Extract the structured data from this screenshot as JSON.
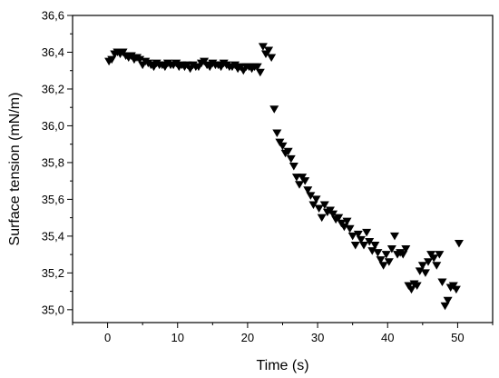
{
  "chart_data": {
    "type": "scatter",
    "title": "",
    "xlabel": "Time (s)",
    "ylabel": "Surface tension (mN/m)",
    "xlim": [
      -5,
      55
    ],
    "ylim": [
      34.93,
      36.6
    ],
    "xticks": [
      0,
      10,
      20,
      30,
      40,
      50
    ],
    "xtick_labels": [
      "0",
      "10",
      "20",
      "30",
      "40",
      "50"
    ],
    "yticks": [
      35.0,
      35.2,
      35.4,
      35.6,
      35.8,
      36.0,
      36.2,
      36.4,
      36.6
    ],
    "ytick_labels": [
      "35,0",
      "35,2",
      "35,4",
      "35,6",
      "35,8",
      "36,0",
      "36,2",
      "36,4",
      "36,6"
    ],
    "grid": false,
    "marker": "down-triangle",
    "marker_color": "#000000",
    "points": [
      [
        0.2,
        36.35
      ],
      [
        0.6,
        36.36
      ],
      [
        1.0,
        36.39
      ],
      [
        1.4,
        36.4
      ],
      [
        1.8,
        36.39
      ],
      [
        2.2,
        36.4
      ],
      [
        2.6,
        36.38
      ],
      [
        3.0,
        36.37
      ],
      [
        3.4,
        36.38
      ],
      [
        3.8,
        36.36
      ],
      [
        4.2,
        36.37
      ],
      [
        4.6,
        36.36
      ],
      [
        5.0,
        36.33
      ],
      [
        5.4,
        36.35
      ],
      [
        5.8,
        36.34
      ],
      [
        6.2,
        36.33
      ],
      [
        6.6,
        36.32
      ],
      [
        7.0,
        36.34
      ],
      [
        7.4,
        36.33
      ],
      [
        7.8,
        36.33
      ],
      [
        8.2,
        36.32
      ],
      [
        8.6,
        36.34
      ],
      [
        9.0,
        36.33
      ],
      [
        9.4,
        36.33
      ],
      [
        9.8,
        36.34
      ],
      [
        10.2,
        36.32
      ],
      [
        10.6,
        36.33
      ],
      [
        11.0,
        36.32
      ],
      [
        11.4,
        36.33
      ],
      [
        11.8,
        36.31
      ],
      [
        12.2,
        36.33
      ],
      [
        12.6,
        36.32
      ],
      [
        13.0,
        36.32
      ],
      [
        13.4,
        36.34
      ],
      [
        13.8,
        36.35
      ],
      [
        14.2,
        36.33
      ],
      [
        14.6,
        36.32
      ],
      [
        15.0,
        36.34
      ],
      [
        15.4,
        36.33
      ],
      [
        15.8,
        36.33
      ],
      [
        16.2,
        36.32
      ],
      [
        16.6,
        36.34
      ],
      [
        17.0,
        36.33
      ],
      [
        17.4,
        36.32
      ],
      [
        17.8,
        36.32
      ],
      [
        18.2,
        36.33
      ],
      [
        18.6,
        36.31
      ],
      [
        19.0,
        36.32
      ],
      [
        19.4,
        36.3
      ],
      [
        19.8,
        36.32
      ],
      [
        20.2,
        36.32
      ],
      [
        20.6,
        36.31
      ],
      [
        21.0,
        36.32
      ],
      [
        21.4,
        36.32
      ],
      [
        21.8,
        36.29
      ],
      [
        22.2,
        36.43
      ],
      [
        22.6,
        36.39
      ],
      [
        23.0,
        36.41
      ],
      [
        23.4,
        36.37
      ],
      [
        23.8,
        36.09
      ],
      [
        24.2,
        35.96
      ],
      [
        24.6,
        35.91
      ],
      [
        25.0,
        35.89
      ],
      [
        25.4,
        35.85
      ],
      [
        25.8,
        35.86
      ],
      [
        26.2,
        35.82
      ],
      [
        26.6,
        35.78
      ],
      [
        27.0,
        35.72
      ],
      [
        27.4,
        35.68
      ],
      [
        27.8,
        35.72
      ],
      [
        28.2,
        35.7
      ],
      [
        28.6,
        35.65
      ],
      [
        29.0,
        35.62
      ],
      [
        29.4,
        35.57
      ],
      [
        29.8,
        35.6
      ],
      [
        30.2,
        35.55
      ],
      [
        30.6,
        35.5
      ],
      [
        31.0,
        35.57
      ],
      [
        31.4,
        35.53
      ],
      [
        31.8,
        35.54
      ],
      [
        32.2,
        35.52
      ],
      [
        32.6,
        35.49
      ],
      [
        33.0,
        35.5
      ],
      [
        33.4,
        35.47
      ],
      [
        33.8,
        35.45
      ],
      [
        34.2,
        35.48
      ],
      [
        34.6,
        35.44
      ],
      [
        35.0,
        35.4
      ],
      [
        35.4,
        35.35
      ],
      [
        35.8,
        35.41
      ],
      [
        36.2,
        35.38
      ],
      [
        36.6,
        35.35
      ],
      [
        37.0,
        35.42
      ],
      [
        37.4,
        35.37
      ],
      [
        37.8,
        35.32
      ],
      [
        38.2,
        35.35
      ],
      [
        38.6,
        35.31
      ],
      [
        39.0,
        35.27
      ],
      [
        39.4,
        35.24
      ],
      [
        39.8,
        35.3
      ],
      [
        40.2,
        35.26
      ],
      [
        40.6,
        35.33
      ],
      [
        41.0,
        35.4
      ],
      [
        41.4,
        35.3
      ],
      [
        41.8,
        35.31
      ],
      [
        42.2,
        35.3
      ],
      [
        42.6,
        35.33
      ],
      [
        43.0,
        35.13
      ],
      [
        43.4,
        35.11
      ],
      [
        43.8,
        35.14
      ],
      [
        44.2,
        35.13
      ],
      [
        44.6,
        35.21
      ],
      [
        45.0,
        35.24
      ],
      [
        45.4,
        35.2
      ],
      [
        45.8,
        35.26
      ],
      [
        46.2,
        35.3
      ],
      [
        46.6,
        35.28
      ],
      [
        47.0,
        35.24
      ],
      [
        47.4,
        35.3
      ],
      [
        47.8,
        35.15
      ],
      [
        48.2,
        35.02
      ],
      [
        48.6,
        35.05
      ],
      [
        49.0,
        35.12
      ],
      [
        49.4,
        35.13
      ],
      [
        49.8,
        35.11
      ],
      [
        50.2,
        35.36
      ]
    ]
  }
}
